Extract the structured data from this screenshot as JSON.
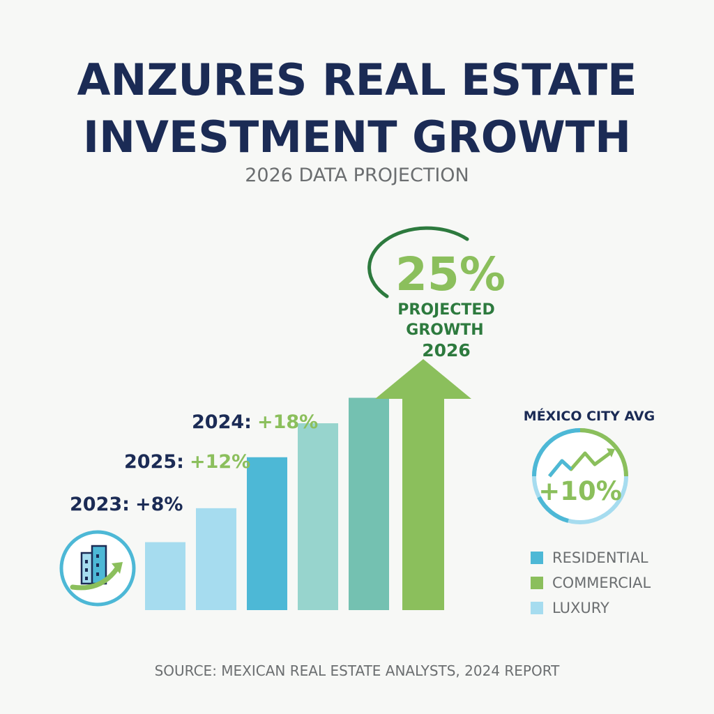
{
  "title_line1": "ANZURES REAL ESTATE",
  "title_line2": "INVESTMENT GROWTH",
  "subtitle": "2026 DATA PROJECTION",
  "source": "SOURCE: MEXICAN REAL ESTATE ANALYSTS, 2024 REPORT",
  "colors": {
    "title": "#1b2b55",
    "green": "#8bbf5c",
    "dark_green": "#2d7a3e",
    "residential": "#4db8d6",
    "commercial": "#8bbf5c",
    "luxury": "#a6dcef",
    "bars": [
      "#a6dcef",
      "#a6dcef",
      "#4db8d6",
      "#97d4cd",
      "#74c1b1"
    ],
    "text_gray": "#6b6e70"
  },
  "legend": [
    {
      "label": "RESIDENTIAL",
      "color": "#4db8d6"
    },
    {
      "label": "COMMERCIAL",
      "color": "#8bbf5c"
    },
    {
      "label": "LUXURY",
      "color": "#a6dcef"
    }
  ],
  "mexico_avg": {
    "label": "MÉXICO CITY AVG",
    "value": "+10%",
    "icon": "trend-up-icon"
  },
  "projection": {
    "value": "25%",
    "line1": "PROJECTED",
    "line2": "GROWTH",
    "line3": "2026"
  },
  "building_icon": "building-growth-icon",
  "chart_data": {
    "type": "bar",
    "title": "ANZURES REAL ESTATE INVESTMENT GROWTH",
    "subtitle": "2026 DATA PROJECTION",
    "annotations": [
      {
        "year": "2023:",
        "value": "+8%"
      },
      {
        "year": "2025:",
        "value": "+12%"
      },
      {
        "year": "2024:",
        "value": "+18%"
      }
    ],
    "values": [
      8,
      12,
      18,
      22,
      25
    ],
    "projection_value": 25,
    "legend": [
      "RESIDENTIAL",
      "COMMERCIAL",
      "LUXURY"
    ],
    "grid": false,
    "legend_position": "right"
  }
}
